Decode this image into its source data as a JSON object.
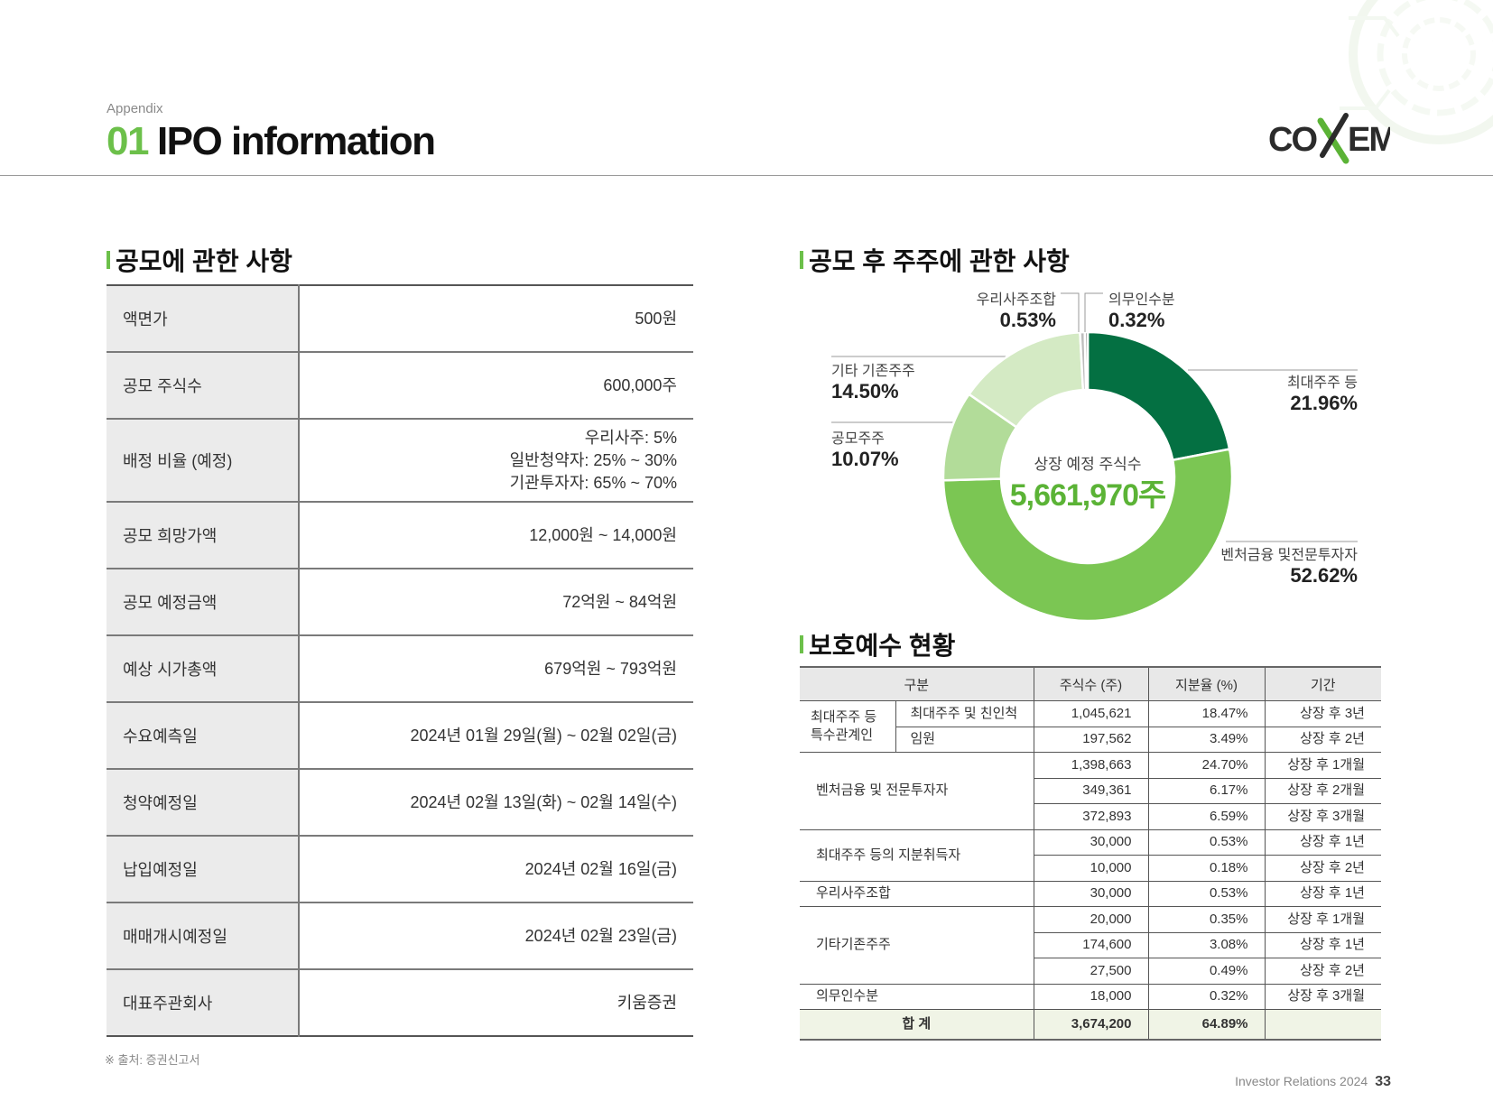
{
  "header": {
    "appendix": "Appendix",
    "title_number": "01",
    "title_text": "IPO information",
    "logo_text": "COXEM"
  },
  "ipo_section": {
    "title": "공모에 관한 사항",
    "rows": [
      {
        "label": "액면가",
        "value": "500원"
      },
      {
        "label": "공모 주식수",
        "value": "600,000주"
      },
      {
        "label": "배정 비율 (예정)",
        "value_lines": [
          "우리사주: 5%",
          "일반청약자: 25% ~ 30%",
          "기관투자자: 65% ~ 70%"
        ]
      },
      {
        "label": "공모 희망가액",
        "value": "12,000원 ~ 14,000원"
      },
      {
        "label": "공모 예정금액",
        "value": "72억원 ~ 84억원"
      },
      {
        "label": "예상 시가총액",
        "value": "679억원 ~ 793억원"
      },
      {
        "label": "수요예측일",
        "value": "2024년 01월 29일(월) ~ 02월 02일(금)"
      },
      {
        "label": "청약예정일",
        "value": "2024년 02월 13일(화) ~ 02월 14일(수)"
      },
      {
        "label": "납입예정일",
        "value": "2024년 02월 16일(금)"
      },
      {
        "label": "매매개시예정일",
        "value": "2024년 02월 23일(금)"
      },
      {
        "label": "대표주관회사",
        "value": "키움증권"
      }
    ],
    "source_note": "※ 출처: 증권신고서"
  },
  "shareholder_section": {
    "title": "공모 후 주주에 관한 사항"
  },
  "chart_data": {
    "type": "pie",
    "donut": true,
    "center_label": "상장 예정 주식수",
    "center_value": "5,661,970주",
    "slices": [
      {
        "name": "최대주주 등",
        "pct_label": "21.96%",
        "value": 21.96,
        "color": "#047042"
      },
      {
        "name": "벤처금융 및전문투자자",
        "pct_label": "52.62%",
        "value": 52.62,
        "color": "#7bc653"
      },
      {
        "name": "공모주주",
        "pct_label": "10.07%",
        "value": 10.07,
        "color": "#b2dc99"
      },
      {
        "name": "기타 기존주주",
        "pct_label": "14.50%",
        "value": 14.5,
        "color": "#d4eac4"
      },
      {
        "name": "우리사주조합",
        "pct_label": "0.53%",
        "value": 0.53,
        "color": "#bdbdbd"
      },
      {
        "name": "의무인수분",
        "pct_label": "0.32%",
        "value": 0.32,
        "color": "#8e8e8e"
      }
    ]
  },
  "lockup_section": {
    "title": "보호예수 현황",
    "headers": [
      "구분",
      "주식수 (주)",
      "지분율 (%)",
      "기간"
    ],
    "rows": [
      {
        "cat": "최대주주 등\n특수관계인",
        "sub": "최대주주 및 친인척",
        "shares": "1,045,621",
        "ratio": "18.47%",
        "period": "상장 후 3년"
      },
      {
        "sub": "임원",
        "shares": "197,562",
        "ratio": "3.49%",
        "period": "상장 후 2년"
      },
      {
        "cat": "벤처금융 및 전문투자자",
        "shares": "1,398,663",
        "ratio": "24.70%",
        "period": "상장 후 1개월"
      },
      {
        "shares": "349,361",
        "ratio": "6.17%",
        "period": "상장 후 2개월"
      },
      {
        "shares": "372,893",
        "ratio": "6.59%",
        "period": "상장 후 3개월"
      },
      {
        "cat": "최대주주 등의 지분취득자",
        "shares": "30,000",
        "ratio": "0.53%",
        "period": "상장 후 1년"
      },
      {
        "shares": "10,000",
        "ratio": "0.18%",
        "period": "상장 후 2년"
      },
      {
        "cat": "우리사주조합",
        "shares": "30,000",
        "ratio": "0.53%",
        "period": "상장 후 1년"
      },
      {
        "cat": "기타기존주주",
        "shares": "20,000",
        "ratio": "0.35%",
        "period": "상장 후 1개월"
      },
      {
        "shares": "174,600",
        "ratio": "3.08%",
        "period": "상장 후 1년"
      },
      {
        "shares": "27,500",
        "ratio": "0.49%",
        "period": "상장 후 2년"
      },
      {
        "cat": "의무인수분",
        "shares": "18,000",
        "ratio": "0.32%",
        "period": "상장 후 3개월"
      }
    ],
    "total": {
      "label": "합 계",
      "shares": "3,674,200",
      "ratio": "64.89%",
      "period": ""
    }
  },
  "footer": {
    "text": "Investor Relations 2024",
    "page": "33"
  }
}
